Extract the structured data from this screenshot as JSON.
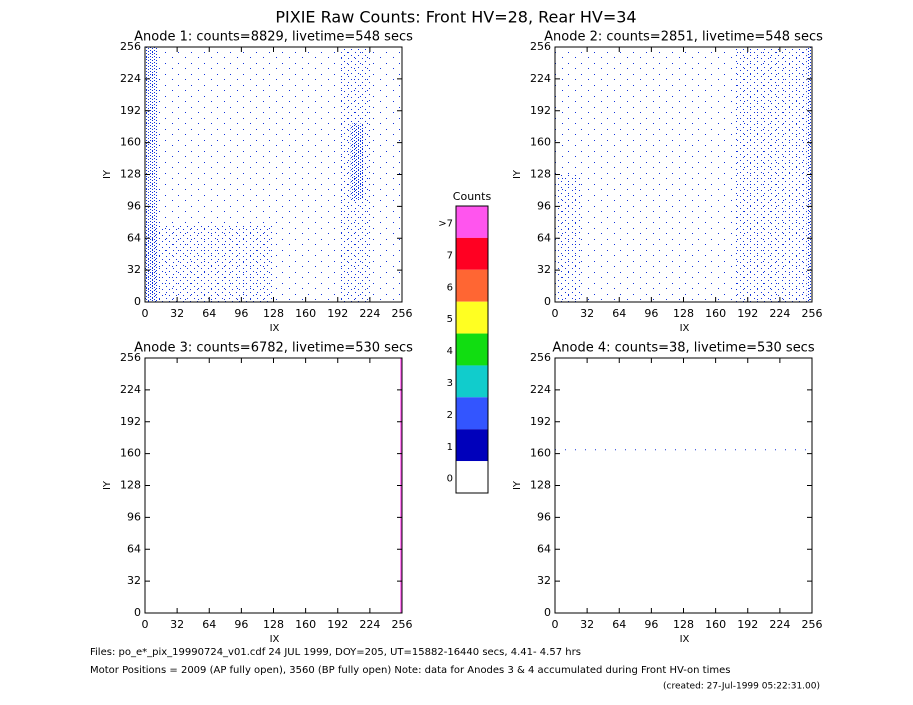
{
  "title": "PIXIE Raw Counts:  Front HV=28, Rear HV=34",
  "chart_data": [
    {
      "type": "heatmap",
      "title": "Anode 1: counts=8829, livetime=548 secs",
      "xlabel": "IX",
      "ylabel": "IY",
      "xlim": [
        0,
        256
      ],
      "ylim": [
        0,
        256
      ],
      "xticks": [
        0,
        32,
        64,
        96,
        128,
        160,
        192,
        224,
        256
      ],
      "yticks": [
        0,
        32,
        64,
        96,
        128,
        160,
        192,
        224,
        256
      ]
    },
    {
      "type": "heatmap",
      "title": "Anode 2: counts=2851, livetime=548 secs",
      "xlabel": "IX",
      "ylabel": "IY",
      "xlim": [
        0,
        256
      ],
      "ylim": [
        0,
        256
      ],
      "xticks": [
        0,
        32,
        64,
        96,
        128,
        160,
        192,
        224,
        256
      ],
      "yticks": [
        0,
        32,
        64,
        96,
        128,
        160,
        192,
        224,
        256
      ]
    },
    {
      "type": "heatmap",
      "title": "Anode 3: counts=6782, livetime=530 secs",
      "xlabel": "IX",
      "ylabel": "IY",
      "xlim": [
        0,
        256
      ],
      "ylim": [
        0,
        256
      ],
      "xticks": [
        0,
        32,
        64,
        96,
        128,
        160,
        192,
        224,
        256
      ],
      "yticks": [
        0,
        32,
        64,
        96,
        128,
        160,
        192,
        224,
        256
      ]
    },
    {
      "type": "heatmap",
      "title": "Anode 4: counts=38, livetime=530 secs",
      "xlabel": "IX",
      "ylabel": "IY",
      "xlim": [
        0,
        256
      ],
      "ylim": [
        0,
        256
      ],
      "xticks": [
        0,
        32,
        64,
        96,
        128,
        160,
        192,
        224,
        256
      ],
      "yticks": [
        0,
        32,
        64,
        96,
        128,
        160,
        192,
        224,
        256
      ]
    }
  ],
  "colorbar": {
    "title": "Counts",
    "labels": [
      ">7",
      "7",
      "6",
      "5",
      "4",
      "3",
      "2",
      "1",
      "0"
    ],
    "colors": [
      "#ff55ee",
      "#ff0022",
      "#ff6633",
      "#ffff22",
      "#11dd11",
      "#11cccc",
      "#3355ff",
      "#0000bb",
      "#ffffff"
    ]
  },
  "footer": {
    "files": "Files: po_e*_pix_19990724_v01.cdf   24 JUL 1999, DOY=205, UT=15882-16440 secs,  4.41- 4.57 hrs",
    "motor": "Motor Positions = 2009 (AP fully open), 3560 (BP fully open)    Note: data for Anodes 3 & 4 accumulated during Front HV-on times",
    "created": "(created: 27-Jul-1999 05:22:31.00)"
  }
}
